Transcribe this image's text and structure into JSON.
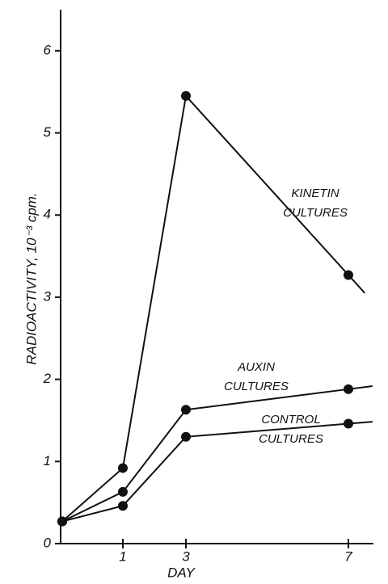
{
  "chart_data": {
    "type": "line",
    "x_label": "DAY",
    "y_label": "RADIOACTIVITY,  10⁻³ cpm.",
    "categories": [
      null,
      "1",
      "3",
      "7"
    ],
    "series": [
      {
        "name": "KINETIN CULTURES",
        "color": "#111111",
        "values": [
          0.27,
          0.92,
          5.45,
          3.27
        ]
      },
      {
        "name": "AUXIN CULTURES",
        "color": "#111111",
        "values": [
          0.27,
          0.63,
          1.63,
          1.88
        ]
      },
      {
        "name": "CONTROL CULTURES",
        "color": "#111111",
        "values": [
          0.27,
          0.46,
          1.3,
          1.46
        ]
      }
    ],
    "ylim": [
      0,
      6.5
    ],
    "yticks": [
      0,
      1,
      2,
      3,
      4,
      5,
      6
    ],
    "grid": false
  }
}
